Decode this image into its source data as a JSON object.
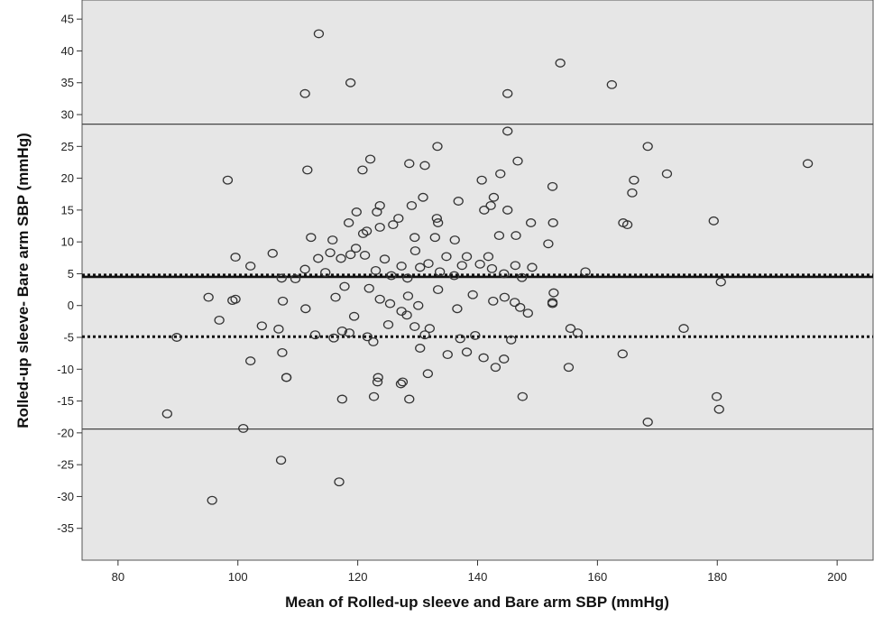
{
  "chart_data": {
    "type": "scatter",
    "title": "",
    "xlabel": "Mean of Rolled-up sleeve and Bare arm SBP (mmHg)",
    "ylabel": "Rolled-up sleeve- Bare arm SBP (mmHg)",
    "xlim": [
      74,
      206
    ],
    "ylim": [
      -40,
      48
    ],
    "xticks": [
      80,
      100,
      120,
      140,
      160,
      180,
      200
    ],
    "yticks": [
      -35,
      -30,
      -25,
      -20,
      -15,
      -10,
      -5,
      0,
      5,
      10,
      15,
      20,
      25,
      30,
      35,
      40,
      45
    ],
    "grid": false,
    "plot_background": "#e6e6e6",
    "marker_color": "#333333",
    "reference_lines": [
      {
        "y": 28.5,
        "style": "solid"
      },
      {
        "y": 4.8,
        "style": "dotted"
      },
      {
        "y": 4.5,
        "style": "solid-thick"
      },
      {
        "y": -4.9,
        "style": "dotted"
      },
      {
        "y": -19.4,
        "style": "solid"
      }
    ],
    "points": [
      [
        113.5,
        42.7
      ],
      [
        153.8,
        38.1
      ],
      [
        111.2,
        33.3
      ],
      [
        118.8,
        35.0
      ],
      [
        145.0,
        33.3
      ],
      [
        162.4,
        34.7
      ],
      [
        145.0,
        27.4
      ],
      [
        133.3,
        25.0
      ],
      [
        146.7,
        22.7
      ],
      [
        128.6,
        22.3
      ],
      [
        131.2,
        22.0
      ],
      [
        122.1,
        23.0
      ],
      [
        168.4,
        25.0
      ],
      [
        195.1,
        22.3
      ],
      [
        111.6,
        21.3
      ],
      [
        98.3,
        19.7
      ],
      [
        120.8,
        21.3
      ],
      [
        143.8,
        20.7
      ],
      [
        140.7,
        19.7
      ],
      [
        152.5,
        18.7
      ],
      [
        166.1,
        19.7
      ],
      [
        171.6,
        20.7
      ],
      [
        165.8,
        17.7
      ],
      [
        118.5,
        13.0
      ],
      [
        119.8,
        14.7
      ],
      [
        123.2,
        14.7
      ],
      [
        123.7,
        15.7
      ],
      [
        126.8,
        13.7
      ],
      [
        129.0,
        15.7
      ],
      [
        130.9,
        17.0
      ],
      [
        133.2,
        13.7
      ],
      [
        133.4,
        13.0
      ],
      [
        136.8,
        16.4
      ],
      [
        141.1,
        15.0
      ],
      [
        142.2,
        15.7
      ],
      [
        142.7,
        17.0
      ],
      [
        145.0,
        15.0
      ],
      [
        152.6,
        13.0
      ],
      [
        164.3,
        13.0
      ],
      [
        165.0,
        12.7
      ],
      [
        179.4,
        13.3
      ],
      [
        112.2,
        10.7
      ],
      [
        115.8,
        10.3
      ],
      [
        120.9,
        11.3
      ],
      [
        121.5,
        11.7
      ],
      [
        123.7,
        12.3
      ],
      [
        125.9,
        12.7
      ],
      [
        129.5,
        10.7
      ],
      [
        132.9,
        10.7
      ],
      [
        136.2,
        10.3
      ],
      [
        143.6,
        11.0
      ],
      [
        146.4,
        11.0
      ],
      [
        148.9,
        13.0
      ],
      [
        151.8,
        9.7
      ],
      [
        99.6,
        7.6
      ],
      [
        102.1,
        6.2
      ],
      [
        105.8,
        8.2
      ],
      [
        107.3,
        4.3
      ],
      [
        109.6,
        4.2
      ],
      [
        111.2,
        5.7
      ],
      [
        113.4,
        7.4
      ],
      [
        114.6,
        5.2
      ],
      [
        115.4,
        8.3
      ],
      [
        117.2,
        7.4
      ],
      [
        118.8,
        8.0
      ],
      [
        119.7,
        9.0
      ],
      [
        121.2,
        7.9
      ],
      [
        123.0,
        5.5
      ],
      [
        124.5,
        7.3
      ],
      [
        125.6,
        4.7
      ],
      [
        127.3,
        6.2
      ],
      [
        128.3,
        4.3
      ],
      [
        129.6,
        8.6
      ],
      [
        130.4,
        6.0
      ],
      [
        131.8,
        6.6
      ],
      [
        133.7,
        5.3
      ],
      [
        134.8,
        7.7
      ],
      [
        136.1,
        4.7
      ],
      [
        137.4,
        6.3
      ],
      [
        138.2,
        7.7
      ],
      [
        140.4,
        6.5
      ],
      [
        141.8,
        7.7
      ],
      [
        142.4,
        5.8
      ],
      [
        144.4,
        5.0
      ],
      [
        146.3,
        6.3
      ],
      [
        147.4,
        4.4
      ],
      [
        149.1,
        6.0
      ],
      [
        158.0,
        5.3
      ],
      [
        95.1,
        1.3
      ],
      [
        99.1,
        0.8
      ],
      [
        99.6,
        1.0
      ],
      [
        104.0,
        -3.2
      ],
      [
        107.5,
        0.7
      ],
      [
        111.3,
        -0.5
      ],
      [
        116.3,
        1.3
      ],
      [
        117.8,
        3.0
      ],
      [
        121.9,
        2.7
      ],
      [
        123.7,
        1.0
      ],
      [
        125.4,
        0.3
      ],
      [
        128.4,
        1.5
      ],
      [
        130.1,
        0.0
      ],
      [
        133.4,
        2.5
      ],
      [
        136.6,
        -0.5
      ],
      [
        139.2,
        1.7
      ],
      [
        142.6,
        0.7
      ],
      [
        144.5,
        1.3
      ],
      [
        146.2,
        0.5
      ],
      [
        147.1,
        -0.3
      ],
      [
        152.5,
        0.3
      ],
      [
        152.7,
        2.0
      ],
      [
        152.5,
        0.5
      ],
      [
        180.6,
        3.7
      ],
      [
        89.8,
        -5.0
      ],
      [
        96.9,
        -2.3
      ],
      [
        102.1,
        -8.7
      ],
      [
        106.8,
        -3.7
      ],
      [
        107.4,
        -7.4
      ],
      [
        108.1,
        -11.3
      ],
      [
        112.9,
        -4.6
      ],
      [
        116.0,
        -5.1
      ],
      [
        117.4,
        -4.0
      ],
      [
        118.6,
        -4.3
      ],
      [
        119.4,
        -1.7
      ],
      [
        121.6,
        -4.9
      ],
      [
        122.6,
        -5.7
      ],
      [
        125.1,
        -3.0
      ],
      [
        127.3,
        -0.9
      ],
      [
        128.2,
        -1.5
      ],
      [
        129.5,
        -3.3
      ],
      [
        130.4,
        -6.7
      ],
      [
        131.2,
        -4.6
      ],
      [
        132.0,
        -3.6
      ],
      [
        135.0,
        -7.7
      ],
      [
        137.1,
        -5.2
      ],
      [
        138.2,
        -7.3
      ],
      [
        139.6,
        -4.7
      ],
      [
        141.0,
        -8.2
      ],
      [
        143.0,
        -9.7
      ],
      [
        144.4,
        -8.4
      ],
      [
        145.6,
        -5.4
      ],
      [
        148.4,
        -1.2
      ],
      [
        155.2,
        -9.7
      ],
      [
        155.5,
        -3.6
      ],
      [
        156.7,
        -4.3
      ],
      [
        164.2,
        -7.6
      ],
      [
        174.4,
        -3.6
      ],
      [
        88.2,
        -17.0
      ],
      [
        100.9,
        -19.3
      ],
      [
        107.2,
        -24.3
      ],
      [
        108.1,
        -11.3
      ],
      [
        117.4,
        -14.7
      ],
      [
        122.7,
        -14.3
      ],
      [
        123.4,
        -11.3
      ],
      [
        123.3,
        -12.0
      ],
      [
        127.5,
        -12.0
      ],
      [
        127.2,
        -12.3
      ],
      [
        128.6,
        -14.7
      ],
      [
        131.7,
        -10.7
      ],
      [
        147.5,
        -14.3
      ],
      [
        168.4,
        -18.3
      ],
      [
        179.9,
        -14.3
      ],
      [
        180.3,
        -16.3
      ],
      [
        95.7,
        -30.6
      ],
      [
        116.9,
        -27.7
      ]
    ]
  }
}
